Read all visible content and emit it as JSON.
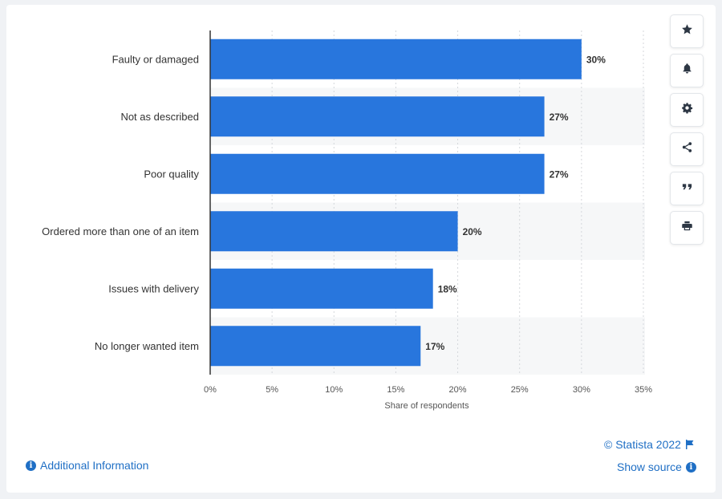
{
  "chart_data": {
    "type": "bar",
    "orientation": "horizontal",
    "categories": [
      "Faulty or damaged",
      "Not as described",
      "Poor quality",
      "Ordered more than one of an item",
      "Issues with delivery",
      "No longer wanted item"
    ],
    "values": [
      30,
      27,
      27,
      20,
      18,
      17
    ],
    "value_labels": [
      "30%",
      "27%",
      "27%",
      "20%",
      "18%",
      "17%"
    ],
    "xlabel": "Share of respondents",
    "ylabel": "",
    "xlim": [
      0,
      35
    ],
    "x_ticks": [
      0,
      5,
      10,
      15,
      20,
      25,
      30,
      35
    ],
    "x_tick_labels": [
      "0%",
      "5%",
      "10%",
      "15%",
      "20%",
      "25%",
      "30%",
      "35%"
    ],
    "grid": true,
    "bar_color": "#2876dd"
  },
  "toolbar": {
    "buttons": [
      {
        "name": "star",
        "icon": "star-icon"
      },
      {
        "name": "notification",
        "icon": "bell-icon"
      },
      {
        "name": "settings",
        "icon": "gear-icon"
      },
      {
        "name": "share",
        "icon": "share-icon"
      },
      {
        "name": "cite",
        "icon": "quote-icon"
      },
      {
        "name": "print",
        "icon": "printer-icon"
      }
    ]
  },
  "footer": {
    "copyright": "© Statista 2022",
    "show_source": "Show source",
    "additional_info": "Additional Information",
    "link_color": "#1f6fc5"
  }
}
